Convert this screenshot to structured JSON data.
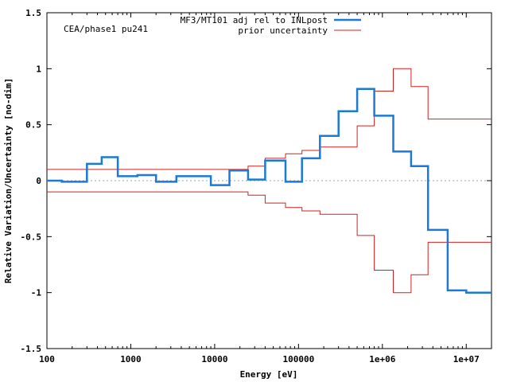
{
  "chart_data": {
    "type": "line",
    "subtype": "step",
    "annotation": "CEA/phase1 pu241",
    "xlabel": "Energy [eV]",
    "ylabel": "Relative Variation/Uncertainty [no-dim]",
    "xscale": "log",
    "xlim": [
      100,
      20000000
    ],
    "ylim": [
      -1.5,
      1.5
    ],
    "x_ticks": [
      {
        "value": 100,
        "label": "100"
      },
      {
        "value": 1000,
        "label": "1000"
      },
      {
        "value": 10000,
        "label": "10000"
      },
      {
        "value": 100000,
        "label": "100000"
      },
      {
        "value": 1000000,
        "label": "1e+06"
      },
      {
        "value": 10000000,
        "label": "1e+07"
      }
    ],
    "y_ticks": [
      {
        "value": 1.5,
        "label": "1.5"
      },
      {
        "value": 1,
        "label": "1"
      },
      {
        "value": 0.5,
        "label": "0.5"
      },
      {
        "value": 0,
        "label": "0"
      },
      {
        "value": -0.5,
        "label": "-0.5"
      },
      {
        "value": -1,
        "label": "-1"
      },
      {
        "value": -1.5,
        "label": "-1.5"
      }
    ],
    "zero_line": true,
    "legend_position": "top-right",
    "series": [
      {
        "name": "MF3/MT101 adj rel to INLpost",
        "color": "#1a7ad6",
        "style": "step",
        "edges": [
          100,
          150,
          300,
          450,
          700,
          1200,
          2000,
          3500,
          9000,
          15000,
          25000,
          40000,
          70000,
          110000,
          180000,
          300000,
          500000,
          800000,
          1350000,
          2200000,
          3500000,
          6000000,
          10000000,
          20000000
        ],
        "values": [
          0.0,
          -0.01,
          0.15,
          0.21,
          0.04,
          0.05,
          -0.01,
          0.04,
          -0.04,
          0.09,
          0.01,
          0.18,
          -0.01,
          0.2,
          0.4,
          0.62,
          0.82,
          0.58,
          0.26,
          0.13,
          -0.44,
          -0.98,
          -1.0
        ]
      },
      {
        "name": "prior uncertainty",
        "color": "#d42020",
        "style": "step-band",
        "edges": [
          100,
          15000,
          25000,
          40000,
          70000,
          110000,
          180000,
          300000,
          500000,
          800000,
          1350000,
          2200000,
          3500000,
          20000000
        ],
        "values": [
          0.1,
          0.1,
          0.13,
          0.2,
          0.24,
          0.27,
          0.3,
          0.3,
          0.49,
          0.8,
          1.0,
          0.84,
          0.55
        ]
      }
    ]
  }
}
